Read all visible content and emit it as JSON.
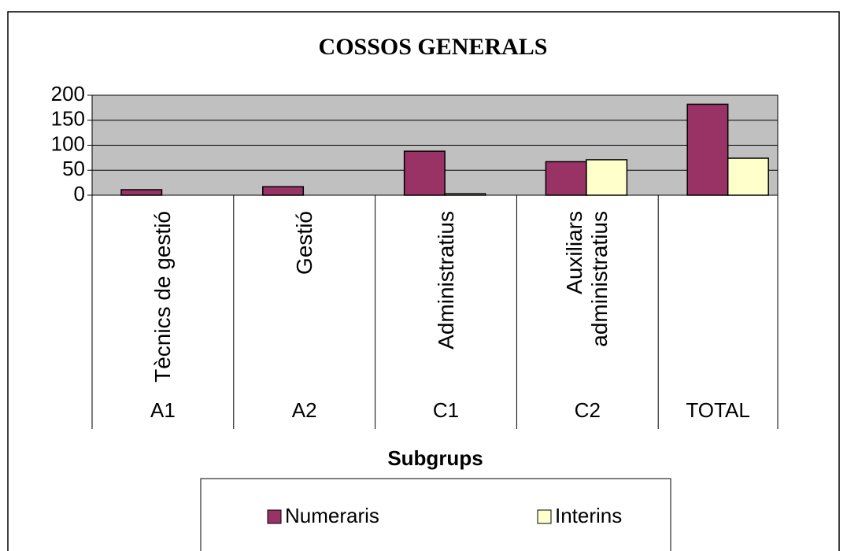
{
  "chart_data": {
    "type": "bar",
    "title": "COSSOS GENERALS",
    "x_label": "Subgrups",
    "categories": [
      "Tècnics de gestió",
      "Gestió",
      "Administratius",
      "Auxiliars administratius",
      null
    ],
    "groups": [
      "A1",
      "A2",
      "C1",
      "C2",
      "TOTAL"
    ],
    "series": [
      {
        "name": "Numeraris",
        "color": "#993366",
        "values": [
          11,
          17,
          88,
          67,
          182
        ]
      },
      {
        "name": "Interins",
        "color": "#ffffcc",
        "values": [
          0,
          0,
          3,
          71,
          74
        ]
      }
    ],
    "ylim": [
      0,
      200
    ],
    "yticks": [
      0,
      50,
      100,
      150,
      200
    ],
    "grid": true,
    "plot_color": "#c0c0c0",
    "legend": "bottom"
  }
}
